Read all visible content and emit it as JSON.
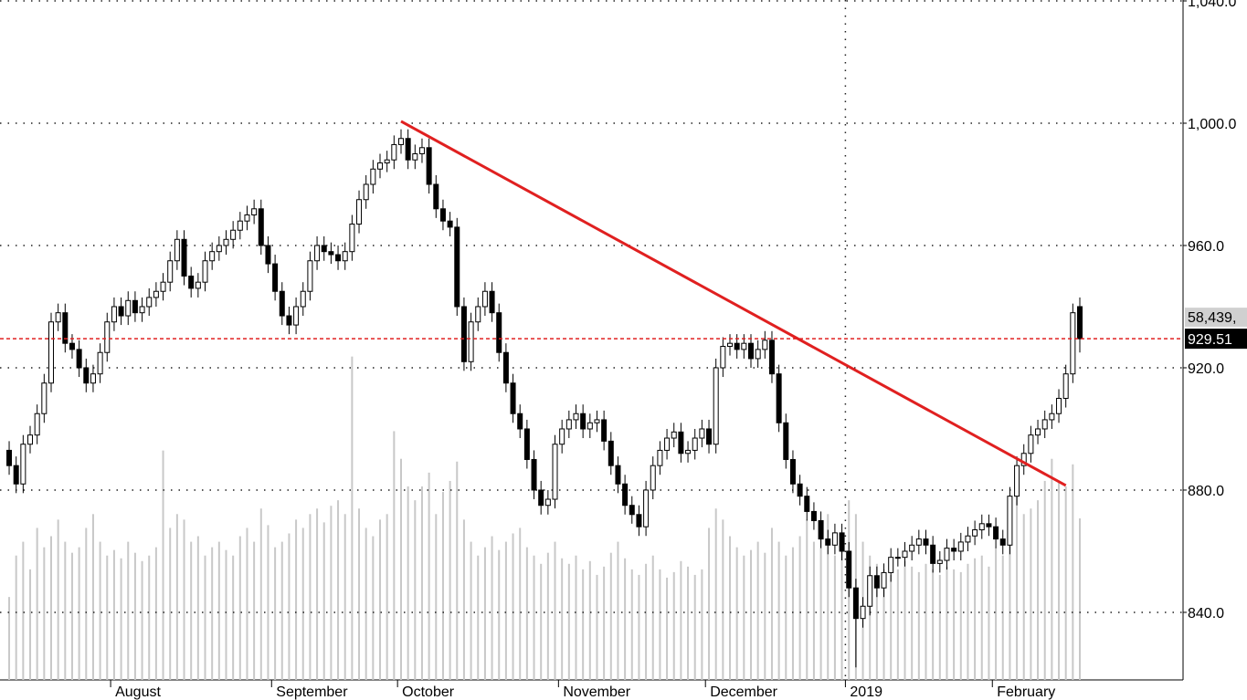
{
  "chart_data": {
    "type": "candlestick",
    "categories": [
      null,
      null,
      null,
      null,
      null,
      null,
      null,
      null,
      null,
      null,
      null,
      null,
      null,
      null,
      null,
      "August",
      null,
      null,
      null,
      null,
      null,
      null,
      null,
      null,
      null,
      null,
      null,
      null,
      null,
      null,
      null,
      null,
      null,
      null,
      null,
      null,
      null,
      null,
      "September",
      null,
      null,
      null,
      null,
      null,
      null,
      null,
      null,
      null,
      null,
      null,
      null,
      null,
      null,
      null,
      null,
      null,
      "October",
      null,
      null,
      null,
      null,
      null,
      null,
      null,
      null,
      null,
      null,
      null,
      null,
      null,
      null,
      null,
      null,
      null,
      null,
      null,
      null,
      null,
      null,
      "November",
      null,
      null,
      null,
      null,
      null,
      null,
      null,
      null,
      null,
      null,
      null,
      null,
      null,
      null,
      null,
      null,
      null,
      null,
      null,
      null,
      "December",
      null,
      null,
      null,
      null,
      null,
      null,
      null,
      null,
      null,
      null,
      null,
      null,
      null,
      null,
      null,
      null,
      null,
      null,
      null,
      "2019",
      null,
      null,
      null,
      null,
      null,
      null,
      null,
      null,
      null,
      null,
      null,
      null,
      null,
      null,
      null,
      null,
      null,
      null,
      null,
      null,
      "February",
      null,
      null,
      null,
      null,
      null,
      null,
      null,
      null,
      null,
      null,
      null,
      null
    ],
    "ohlc": [
      [
        893,
        896,
        885,
        888
      ],
      [
        888,
        891,
        879,
        882
      ],
      [
        882,
        898,
        879,
        895
      ],
      [
        895,
        901,
        892,
        898
      ],
      [
        898,
        908,
        895,
        905
      ],
      [
        905,
        918,
        902,
        915
      ],
      [
        915,
        938,
        912,
        935
      ],
      [
        935,
        941,
        932,
        938
      ],
      [
        938,
        941,
        925,
        928
      ],
      [
        928,
        931,
        923,
        926
      ],
      [
        926,
        929,
        917,
        920
      ],
      [
        920,
        923,
        912,
        915
      ],
      [
        915,
        921,
        912,
        918
      ],
      [
        918,
        928,
        915,
        925
      ],
      [
        925,
        938,
        922,
        935
      ],
      [
        935,
        943,
        932,
        940
      ],
      [
        940,
        943,
        934,
        937
      ],
      [
        937,
        945,
        934,
        942
      ],
      [
        942,
        945,
        935,
        938
      ],
      [
        938,
        943,
        935,
        940
      ],
      [
        940,
        946,
        937,
        943
      ],
      [
        943,
        948,
        940,
        945
      ],
      [
        945,
        951,
        942,
        948
      ],
      [
        948,
        958,
        945,
        955
      ],
      [
        955,
        965,
        952,
        962
      ],
      [
        962,
        965,
        947,
        950
      ],
      [
        950,
        953,
        943,
        946
      ],
      [
        946,
        951,
        943,
        948
      ],
      [
        948,
        958,
        945,
        955
      ],
      [
        955,
        961,
        952,
        958
      ],
      [
        958,
        963,
        955,
        960
      ],
      [
        960,
        965,
        957,
        962
      ],
      [
        962,
        968,
        959,
        965
      ],
      [
        965,
        971,
        962,
        968
      ],
      [
        968,
        973,
        965,
        970
      ],
      [
        970,
        975,
        967,
        972
      ],
      [
        972,
        975,
        957,
        960
      ],
      [
        960,
        963,
        951,
        954
      ],
      [
        954,
        957,
        942,
        945
      ],
      [
        945,
        948,
        934,
        937
      ],
      [
        937,
        940,
        931,
        934
      ],
      [
        934,
        943,
        931,
        940
      ],
      [
        940,
        948,
        937,
        945
      ],
      [
        945,
        958,
        942,
        955
      ],
      [
        955,
        963,
        952,
        960
      ],
      [
        960,
        963,
        955,
        958
      ],
      [
        958,
        961,
        954,
        957
      ],
      [
        957,
        960,
        952,
        955
      ],
      [
        955,
        961,
        952,
        958
      ],
      [
        958,
        970,
        955,
        967
      ],
      [
        967,
        978,
        964,
        975
      ],
      [
        975,
        983,
        972,
        980
      ],
      [
        980,
        988,
        977,
        985
      ],
      [
        985,
        990,
        982,
        987
      ],
      [
        987,
        991,
        984,
        988
      ],
      [
        988,
        996,
        985,
        993
      ],
      [
        993,
        998,
        990,
        995
      ],
      [
        995,
        998,
        985,
        988
      ],
      [
        988,
        993,
        985,
        990
      ],
      [
        990,
        995,
        987,
        992
      ],
      [
        992,
        995,
        977,
        980
      ],
      [
        980,
        983,
        969,
        972
      ],
      [
        972,
        975,
        965,
        968
      ],
      [
        968,
        971,
        963,
        966
      ],
      [
        966,
        969,
        937,
        940
      ],
      [
        940,
        943,
        919,
        922
      ],
      [
        922,
        938,
        919,
        935
      ],
      [
        935,
        943,
        932,
        940
      ],
      [
        940,
        948,
        937,
        945
      ],
      [
        945,
        948,
        935,
        938
      ],
      [
        938,
        941,
        922,
        925
      ],
      [
        925,
        928,
        912,
        915
      ],
      [
        915,
        918,
        902,
        905
      ],
      [
        905,
        908,
        897,
        900
      ],
      [
        900,
        903,
        887,
        890
      ],
      [
        890,
        893,
        877,
        880
      ],
      [
        880,
        883,
        872,
        875
      ],
      [
        875,
        880,
        872,
        877
      ],
      [
        877,
        898,
        874,
        895
      ],
      [
        895,
        903,
        892,
        900
      ],
      [
        900,
        906,
        897,
        903
      ],
      [
        903,
        908,
        900,
        905
      ],
      [
        905,
        908,
        897,
        900
      ],
      [
        900,
        905,
        897,
        902
      ],
      [
        902,
        906,
        899,
        903
      ],
      [
        903,
        906,
        893,
        896
      ],
      [
        896,
        899,
        885,
        888
      ],
      [
        888,
        891,
        879,
        882
      ],
      [
        882,
        885,
        872,
        875
      ],
      [
        875,
        878,
        869,
        872
      ],
      [
        872,
        875,
        865,
        868
      ],
      [
        868,
        883,
        865,
        880
      ],
      [
        880,
        891,
        877,
        888
      ],
      [
        888,
        896,
        885,
        893
      ],
      [
        893,
        900,
        890,
        897
      ],
      [
        897,
        902,
        894,
        899
      ],
      [
        899,
        902,
        889,
        892
      ],
      [
        892,
        896,
        889,
        893
      ],
      [
        893,
        900,
        890,
        897
      ],
      [
        897,
        903,
        894,
        900
      ],
      [
        900,
        903,
        892,
        895
      ],
      [
        895,
        923,
        892,
        920
      ],
      [
        920,
        930,
        917,
        927
      ],
      [
        927,
        931,
        924,
        928
      ],
      [
        928,
        931,
        923,
        926
      ],
      [
        926,
        931,
        923,
        928
      ],
      [
        928,
        931,
        920,
        923
      ],
      [
        923,
        929,
        920,
        926
      ],
      [
        926,
        932,
        923,
        929
      ],
      [
        929,
        932,
        915,
        918
      ],
      [
        918,
        921,
        899,
        902
      ],
      [
        902,
        905,
        887,
        890
      ],
      [
        890,
        893,
        879,
        882
      ],
      [
        882,
        885,
        875,
        878
      ],
      [
        878,
        881,
        870,
        873
      ],
      [
        873,
        876,
        867,
        870
      ],
      [
        870,
        873,
        861,
        864
      ],
      [
        864,
        867,
        859,
        862
      ],
      [
        862,
        869,
        859,
        866
      ],
      [
        866,
        869,
        857,
        860
      ],
      [
        860,
        863,
        845,
        848
      ],
      [
        848,
        851,
        822,
        838
      ],
      [
        838,
        845,
        835,
        842
      ],
      [
        842,
        855,
        839,
        852
      ],
      [
        852,
        855,
        845,
        848
      ],
      [
        848,
        856,
        845,
        853
      ],
      [
        853,
        861,
        850,
        858
      ],
      [
        858,
        861,
        855,
        858
      ],
      [
        858,
        863,
        855,
        860
      ],
      [
        860,
        865,
        857,
        862
      ],
      [
        862,
        867,
        859,
        864
      ],
      [
        864,
        867,
        859,
        862
      ],
      [
        862,
        865,
        853,
        856
      ],
      [
        856,
        860,
        853,
        857
      ],
      [
        857,
        864,
        854,
        861
      ],
      [
        861,
        864,
        857,
        860
      ],
      [
        860,
        866,
        857,
        863
      ],
      [
        863,
        868,
        860,
        865
      ],
      [
        865,
        870,
        862,
        867
      ],
      [
        867,
        872,
        864,
        869
      ],
      [
        869,
        872,
        865,
        868
      ],
      [
        868,
        871,
        861,
        864
      ],
      [
        864,
        867,
        859,
        862
      ],
      [
        862,
        881,
        859,
        878
      ],
      [
        878,
        891,
        875,
        888
      ],
      [
        888,
        895,
        885,
        892
      ],
      [
        892,
        901,
        889,
        898
      ],
      [
        898,
        903,
        895,
        900
      ],
      [
        900,
        906,
        897,
        903
      ],
      [
        903,
        908,
        900,
        905
      ],
      [
        905,
        913,
        902,
        910
      ],
      [
        910,
        921,
        907,
        918
      ],
      [
        918,
        941,
        915,
        938
      ],
      [
        940,
        943,
        925,
        929.51
      ]
    ],
    "volume": [
      30000,
      45000,
      50000,
      40000,
      55000,
      48000,
      52000,
      58000,
      50000,
      46000,
      48000,
      55000,
      60000,
      50000,
      45000,
      47000,
      44000,
      50000,
      46000,
      43000,
      45000,
      48000,
      83000,
      55000,
      60000,
      58000,
      50000,
      52000,
      45000,
      48000,
      50000,
      47000,
      45000,
      52000,
      55000,
      50000,
      62000,
      56000,
      48000,
      50000,
      53000,
      58000,
      55000,
      60000,
      62000,
      57000,
      63000,
      65000,
      60000,
      117000,
      62000,
      55000,
      52000,
      58000,
      60000,
      90000,
      80000,
      70000,
      65000,
      70000,
      75000,
      60000,
      68000,
      72000,
      79000,
      58000,
      50000,
      45000,
      48000,
      52000,
      47000,
      50000,
      53000,
      55000,
      48000,
      45000,
      42000,
      46000,
      50000,
      44000,
      42000,
      45000,
      40000,
      43000,
      38000,
      41000,
      46000,
      50000,
      44000,
      40000,
      38000,
      42000,
      45000,
      40000,
      37000,
      39000,
      43000,
      41000,
      38000,
      40000,
      55000,
      62000,
      58000,
      52000,
      48000,
      45000,
      47000,
      50000,
      46000,
      55000,
      50000,
      45000,
      48000,
      52000,
      58000,
      50000,
      55000,
      60000,
      45000,
      48000,
      65000,
      60000,
      50000,
      45000,
      42000,
      40000,
      38000,
      40000,
      43000,
      41000,
      39000,
      42000,
      40000,
      38000,
      41000,
      40000,
      39000,
      42000,
      44000,
      45000,
      41000,
      48000,
      45000,
      52000,
      70000,
      60000,
      62000,
      65000,
      72000,
      80000,
      72000,
      70000,
      78000,
      58439
    ],
    "vlim": [
      0,
      246000
    ],
    "ylim": [
      817.9,
      1040.3
    ],
    "yticks": [
      {
        "value": 840,
        "label": "840.0"
      },
      {
        "value": 880,
        "label": "880.0"
      },
      {
        "value": 920,
        "label": "920.0"
      },
      {
        "value": 960,
        "label": "960.0"
      },
      {
        "value": 1000,
        "label": "1,000.0"
      },
      {
        "value": 1040,
        "label": "1,040.0"
      }
    ],
    "grid": true,
    "up_color": "#ffffff",
    "down_color": "#000000",
    "volume_color": "#c8c8c8",
    "trendline": {
      "x": [
        56,
        151
      ],
      "y": [
        1000.6,
        881.5
      ],
      "color": "#e02020"
    },
    "ref_line": {
      "value": 929.51,
      "label": "929.51",
      "color": "#e02020"
    },
    "last_volume_label": "58,439,"
  }
}
